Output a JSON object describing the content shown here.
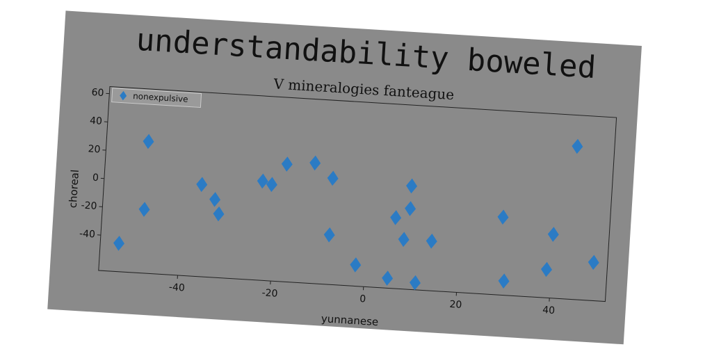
{
  "chart_data": {
    "type": "scatter",
    "title": "understandability boweled",
    "subtitle": "V mineralogies fanteague",
    "x_label": "yunnanese",
    "y_label": "choreal",
    "series": [
      {
        "name": "nonexpulsive",
        "color": "#2b7bc4",
        "marker": "diamond",
        "x": [
          -53,
          -48,
          -48,
          -36,
          -33,
          -32,
          -23,
          -21,
          -18,
          -12,
          -8,
          -8,
          -2,
          5,
          6,
          8,
          9,
          9,
          11,
          14,
          29,
          30,
          39,
          40,
          44,
          49
        ],
        "values": [
          -45,
          -20,
          28,
          0,
          -10,
          -20,
          5,
          3,
          18,
          20,
          10,
          -30,
          -50,
          -58,
          -15,
          -30,
          8,
          -8,
          -60,
          -30,
          -10,
          -55,
          -45,
          -20,
          43,
          -38
        ]
      }
    ],
    "xlim": [
      -57,
      52
    ],
    "ylim": [
      -65,
      65
    ],
    "xticks": [
      -40,
      -20,
      0,
      20,
      40
    ],
    "yticks": [
      -40,
      -20,
      0,
      20,
      40,
      60
    ],
    "legend": "upper left"
  }
}
